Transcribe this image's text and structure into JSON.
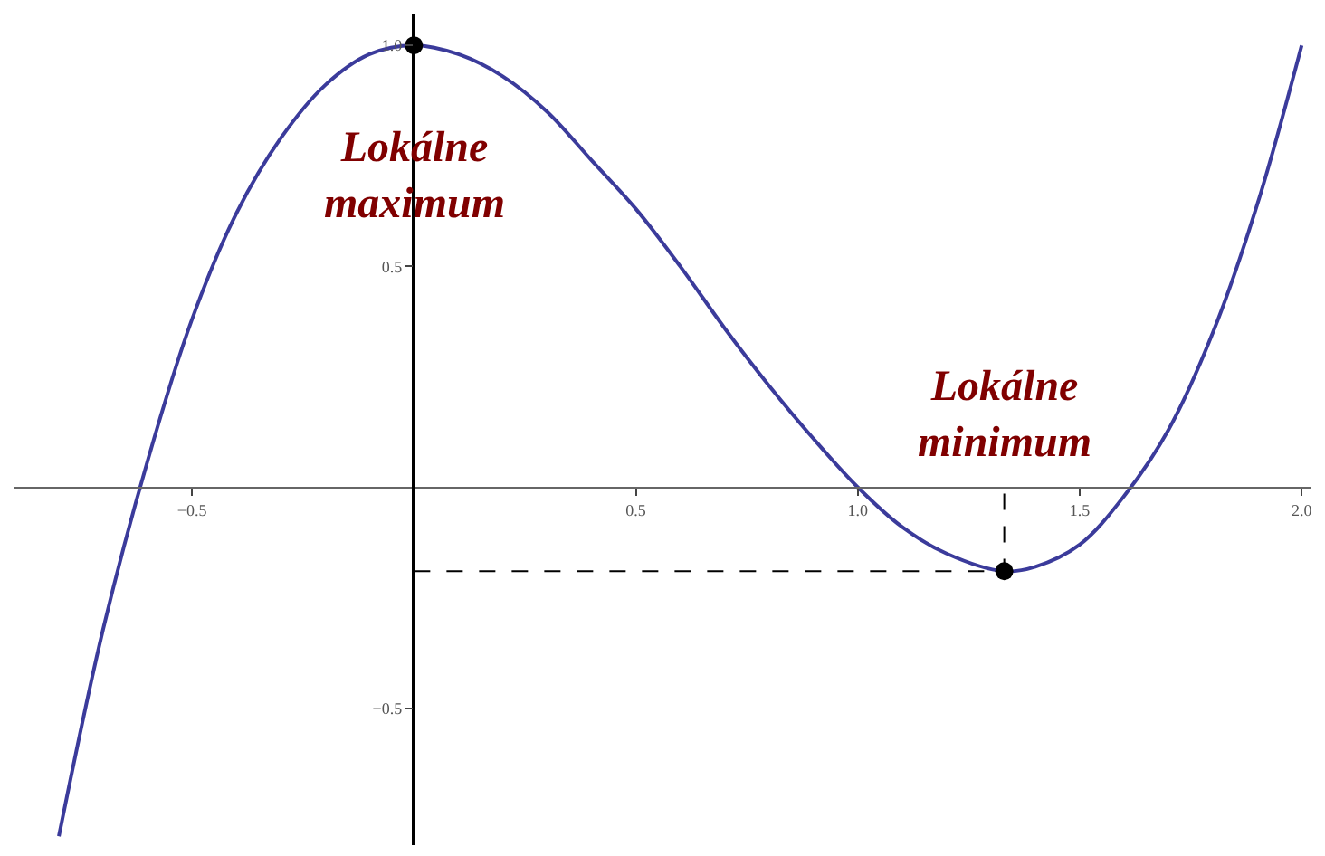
{
  "chart_data": {
    "type": "line",
    "xlim": [
      -0.9,
      2.02
    ],
    "ylim": [
      -0.81,
      1.07
    ],
    "xticks": [
      {
        "value": -0.5,
        "label": "−0.5"
      },
      0.5,
      {
        "value": 1.0,
        "label": "1.0"
      },
      1.5,
      {
        "value": 2.0,
        "label": "2.0"
      }
    ],
    "yticks": [
      {
        "value": -0.5,
        "label": "−0.5"
      },
      0.5,
      {
        "value": 1.0,
        "label": "1.0"
      }
    ],
    "series": [
      {
        "color": "#3b3b9b",
        "x": [
          -0.8,
          -0.7,
          -0.6,
          -0.5,
          -0.4,
          -0.3,
          -0.2,
          -0.1,
          0,
          0.1,
          0.2,
          0.3,
          0.4,
          0.5,
          0.6,
          0.7,
          0.8,
          0.9,
          1.0,
          1.1,
          1.2,
          1.33,
          1.4,
          1.5,
          1.6,
          1.7,
          1.8,
          1.9,
          2.0
        ],
        "values": [
          -0.79,
          -0.32,
          0.06,
          0.38,
          0.62,
          0.79,
          0.91,
          0.98,
          1.0,
          0.98,
          0.93,
          0.85,
          0.74,
          0.63,
          0.5,
          0.36,
          0.23,
          0.11,
          0.0,
          -0.09,
          -0.15,
          -0.19,
          -0.18,
          -0.13,
          -0.02,
          0.13,
          0.35,
          0.64,
          1.0
        ]
      },
      {
        "type": "line",
        "color": "#000000",
        "line_style": "dashed",
        "x": [
          0,
          1.33,
          1.33
        ],
        "values": [
          -0.19,
          -0.19,
          0
        ]
      },
      {
        "type": "scatter",
        "color": "#000000",
        "marker": "circle",
        "x": [
          0,
          1.33
        ],
        "values": [
          1.0,
          -0.19
        ]
      }
    ],
    "annotations": [
      {
        "text": "Lokálne\nmaximum",
        "x": 0,
        "y": 1.0
      },
      {
        "text": "Lokálne\nminimum",
        "x": 1.33,
        "y": -0.19
      }
    ]
  }
}
